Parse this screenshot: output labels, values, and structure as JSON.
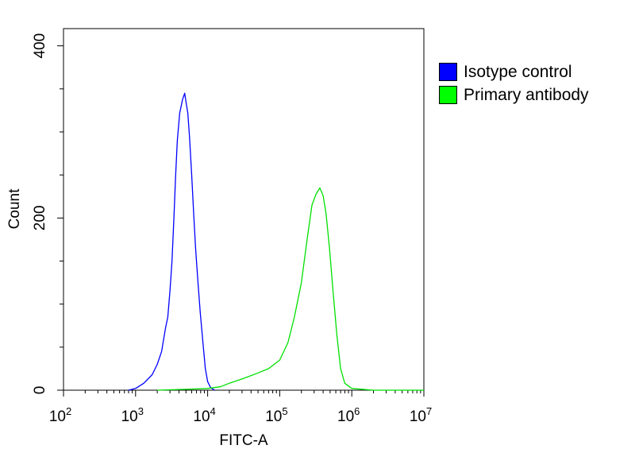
{
  "chart_data": {
    "type": "line",
    "title": "",
    "xlabel": "FITC-A",
    "ylabel": "Count",
    "x_scale": "log",
    "xlim": [
      100,
      10000000
    ],
    "ylim": [
      0,
      420
    ],
    "y_ticks": [
      {
        "value": 0,
        "label": "0"
      },
      {
        "value": 200,
        "label": "200"
      },
      {
        "value": 400,
        "label": "400"
      }
    ],
    "x_ticks": [
      {
        "value": 100,
        "base": "10",
        "exp": "2"
      },
      {
        "value": 1000,
        "base": "10",
        "exp": "3"
      },
      {
        "value": 10000,
        "base": "10",
        "exp": "4"
      },
      {
        "value": 100000,
        "base": "10",
        "exp": "5"
      },
      {
        "value": 1000000,
        "base": "10",
        "exp": "6"
      },
      {
        "value": 10000000,
        "base": "10",
        "exp": "7"
      }
    ],
    "grid": false,
    "legend_position": "top-right, outside plot",
    "series": [
      {
        "name": "Isotype control",
        "color": "#0000ff",
        "points": [
          [
            800,
            0
          ],
          [
            1000,
            2
          ],
          [
            1300,
            8
          ],
          [
            1700,
            18
          ],
          [
            2000,
            30
          ],
          [
            2300,
            45
          ],
          [
            2600,
            72
          ],
          [
            2800,
            85
          ],
          [
            3000,
            115
          ],
          [
            3200,
            150
          ],
          [
            3400,
            200
          ],
          [
            3600,
            250
          ],
          [
            3800,
            290
          ],
          [
            4100,
            322
          ],
          [
            4500,
            338
          ],
          [
            4800,
            345
          ],
          [
            5000,
            335
          ],
          [
            5300,
            322
          ],
          [
            5600,
            295
          ],
          [
            6000,
            250
          ],
          [
            6400,
            205
          ],
          [
            6800,
            165
          ],
          [
            7300,
            128
          ],
          [
            7900,
            90
          ],
          [
            8600,
            55
          ],
          [
            9300,
            25
          ],
          [
            10000,
            10
          ],
          [
            11000,
            3
          ],
          [
            12500,
            0
          ]
        ]
      },
      {
        "name": "Primary antibody",
        "color": "#00e000",
        "points": [
          [
            2000,
            0
          ],
          [
            5000,
            1
          ],
          [
            10000,
            2
          ],
          [
            15000,
            4
          ],
          [
            20000,
            8
          ],
          [
            30000,
            13
          ],
          [
            50000,
            20
          ],
          [
            70000,
            25
          ],
          [
            100000,
            35
          ],
          [
            130000,
            55
          ],
          [
            160000,
            85
          ],
          [
            200000,
            125
          ],
          [
            240000,
            175
          ],
          [
            280000,
            215
          ],
          [
            320000,
            228
          ],
          [
            360000,
            235
          ],
          [
            400000,
            226
          ],
          [
            440000,
            205
          ],
          [
            490000,
            165
          ],
          [
            550000,
            115
          ],
          [
            620000,
            65
          ],
          [
            700000,
            25
          ],
          [
            800000,
            8
          ],
          [
            1000000,
            2
          ],
          [
            2000000,
            0
          ],
          [
            10000000,
            0
          ]
        ]
      }
    ]
  }
}
